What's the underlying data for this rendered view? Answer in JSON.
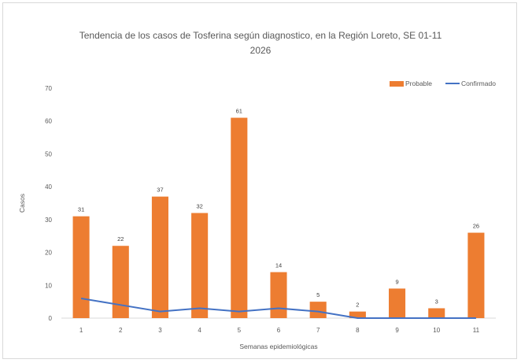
{
  "chart_data": {
    "type": "bar",
    "title_line1": "Tendencia de los casos de Tosferina según diagnostico, en la Región Loreto, SE 01-11",
    "title_line2": "2026",
    "xlabel": "Semanas epidemiológicas",
    "ylabel": "Casos",
    "ylim": [
      0,
      70
    ],
    "yticks": [
      0,
      10,
      20,
      30,
      40,
      50,
      60,
      70
    ],
    "categories": [
      "1",
      "2",
      "3",
      "4",
      "5",
      "6",
      "7",
      "8",
      "9",
      "10",
      "11"
    ],
    "series": [
      {
        "name": "Probable",
        "type": "bar",
        "color": "#ed7d31",
        "values": [
          31,
          22,
          37,
          32,
          61,
          14,
          5,
          2,
          9,
          3,
          26
        ],
        "labels": [
          "31",
          "22",
          "37",
          "32",
          "61",
          "14",
          "5",
          "2",
          "9",
          "3",
          "26"
        ]
      },
      {
        "name": "Confirmado",
        "type": "line",
        "color": "#4472c4",
        "values": [
          6,
          4,
          2,
          3,
          2,
          3,
          2,
          0,
          0,
          0,
          0
        ]
      }
    ],
    "legend_position": "top-right",
    "grid": false
  }
}
